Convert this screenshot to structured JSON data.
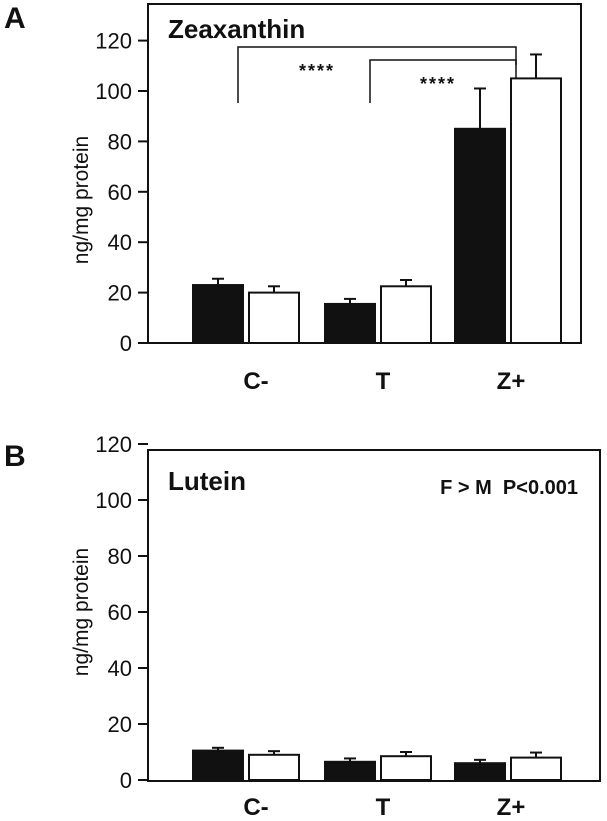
{
  "chart_data": [
    {
      "panel": "A",
      "type": "bar",
      "title": "Zeaxanthin",
      "ylabel": "ng/mg protein",
      "xlabel": "",
      "ylim": [
        0,
        135
      ],
      "yticks": [
        0,
        20,
        40,
        60,
        80,
        100,
        120
      ],
      "categories": [
        "C-",
        "T",
        "Z+"
      ],
      "series": [
        {
          "fill": "#111111",
          "values": [
            23,
            15.5,
            85
          ],
          "errors": [
            2.5,
            2,
            16
          ]
        },
        {
          "fill": "#ffffff",
          "values": [
            20,
            22.5,
            105
          ],
          "errors": [
            2.5,
            2.5,
            9.5
          ]
        }
      ],
      "significance": [
        {
          "from": "C-",
          "to": "Z+",
          "label": "****"
        },
        {
          "from": "T",
          "to": "Z+",
          "label": "****"
        }
      ],
      "annotation": ""
    },
    {
      "panel": "B",
      "type": "bar",
      "title": "Lutein",
      "ylabel": "ng/mg protein",
      "xlabel": "",
      "ylim": [
        0,
        122
      ],
      "yticks": [
        0,
        20,
        40,
        60,
        80,
        100,
        120
      ],
      "categories": [
        "C-",
        "T",
        "Z+"
      ],
      "series": [
        {
          "fill": "#111111",
          "values": [
            10.5,
            6.5,
            6
          ],
          "errors": [
            1,
            1.2,
            1.2
          ]
        },
        {
          "fill": "#ffffff",
          "values": [
            9,
            8.5,
            8
          ],
          "errors": [
            1.3,
            1.5,
            1.8
          ]
        }
      ],
      "significance": [],
      "annotation": "F > M  P<0.001"
    }
  ]
}
